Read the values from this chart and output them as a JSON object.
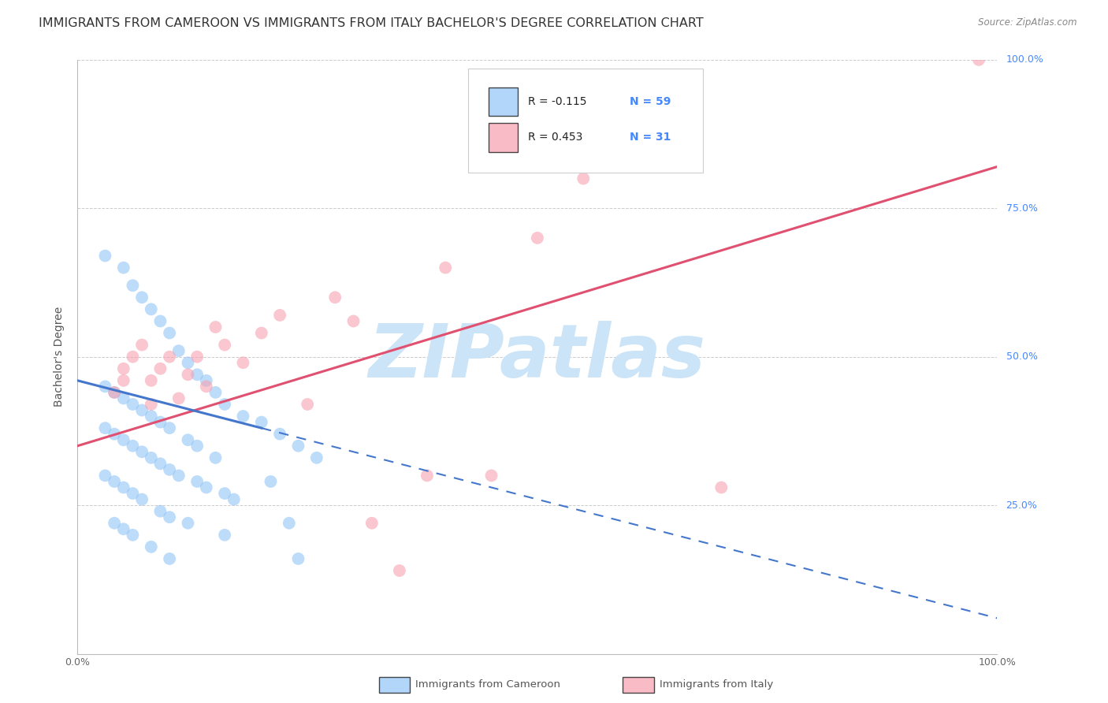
{
  "title": "IMMIGRANTS FROM CAMEROON VS IMMIGRANTS FROM ITALY BACHELOR'S DEGREE CORRELATION CHART",
  "source": "Source: ZipAtlas.com",
  "ylabel": "Bachelor's Degree",
  "watermark_text": "ZIPatlas",
  "legend_label1": "R = -0.115",
  "legend_label2": "R = 0.453",
  "legend_n1": "N = 59",
  "legend_n2": "N = 31",
  "cameroon_color": "#92c5f7",
  "italy_color": "#f7a0b0",
  "cameroon_line_color": "#4477cc",
  "italy_line_color": "#e05070",
  "cameroon_R": -0.115,
  "italy_R": 0.453,
  "bg_color": "#ffffff",
  "grid_color": "#cccccc",
  "right_label_color": "#4488ff",
  "title_color": "#333333",
  "source_color": "#888888",
  "ylabel_color": "#555555",
  "bottom_label_color": "#555555",
  "watermark_color": "#cce4f7",
  "cameroon_x": [
    0.3,
    0.5,
    0.6,
    0.7,
    0.8,
    0.9,
    1.0,
    1.1,
    1.2,
    1.3,
    1.4,
    1.5,
    1.6,
    1.8,
    2.0,
    2.2,
    2.4,
    2.6,
    0.3,
    0.4,
    0.5,
    0.6,
    0.7,
    0.8,
    0.9,
    1.0,
    1.2,
    1.3,
    1.5,
    2.1,
    0.3,
    0.4,
    0.5,
    0.6,
    0.7,
    0.8,
    0.9,
    1.0,
    1.1,
    1.3,
    1.4,
    1.6,
    1.7,
    2.3,
    0.3,
    0.4,
    0.5,
    0.6,
    0.7,
    0.9,
    1.0,
    1.2,
    1.6,
    2.4,
    0.4,
    0.5,
    0.6,
    0.8,
    1.0
  ],
  "cameroon_y": [
    67,
    65,
    62,
    60,
    58,
    56,
    54,
    51,
    49,
    47,
    46,
    44,
    42,
    40,
    39,
    37,
    35,
    33,
    45,
    44,
    43,
    42,
    41,
    40,
    39,
    38,
    36,
    35,
    33,
    29,
    38,
    37,
    36,
    35,
    34,
    33,
    32,
    31,
    30,
    29,
    28,
    27,
    26,
    22,
    30,
    29,
    28,
    27,
    26,
    24,
    23,
    22,
    20,
    16,
    22,
    21,
    20,
    18,
    16
  ],
  "italy_x": [
    0.4,
    0.5,
    0.5,
    0.6,
    0.7,
    0.8,
    0.8,
    0.9,
    1.0,
    1.1,
    1.2,
    1.3,
    1.4,
    1.5,
    1.6,
    1.8,
    2.0,
    2.2,
    2.5,
    2.8,
    3.0,
    3.2,
    3.5,
    3.8,
    4.0,
    4.5,
    5.0,
    5.5,
    6.0,
    7.0,
    9.8
  ],
  "italy_y": [
    44,
    46,
    48,
    50,
    52,
    42,
    46,
    48,
    50,
    43,
    47,
    50,
    45,
    55,
    52,
    49,
    54,
    57,
    42,
    60,
    56,
    22,
    14,
    30,
    65,
    30,
    70,
    80,
    85,
    28,
    100
  ],
  "xlim_max": 100,
  "ylim_max": 100,
  "yticks": [
    0,
    25,
    50,
    75,
    100
  ],
  "xticks": [
    0,
    100
  ],
  "italy_line_start_y": 35.0,
  "italy_line_end_y": 82.0,
  "cam_line_start_y": 46.0,
  "cam_line_end_y": 38.0,
  "cam_line_solid_end_x": 20.0,
  "x_scale": 10.0
}
